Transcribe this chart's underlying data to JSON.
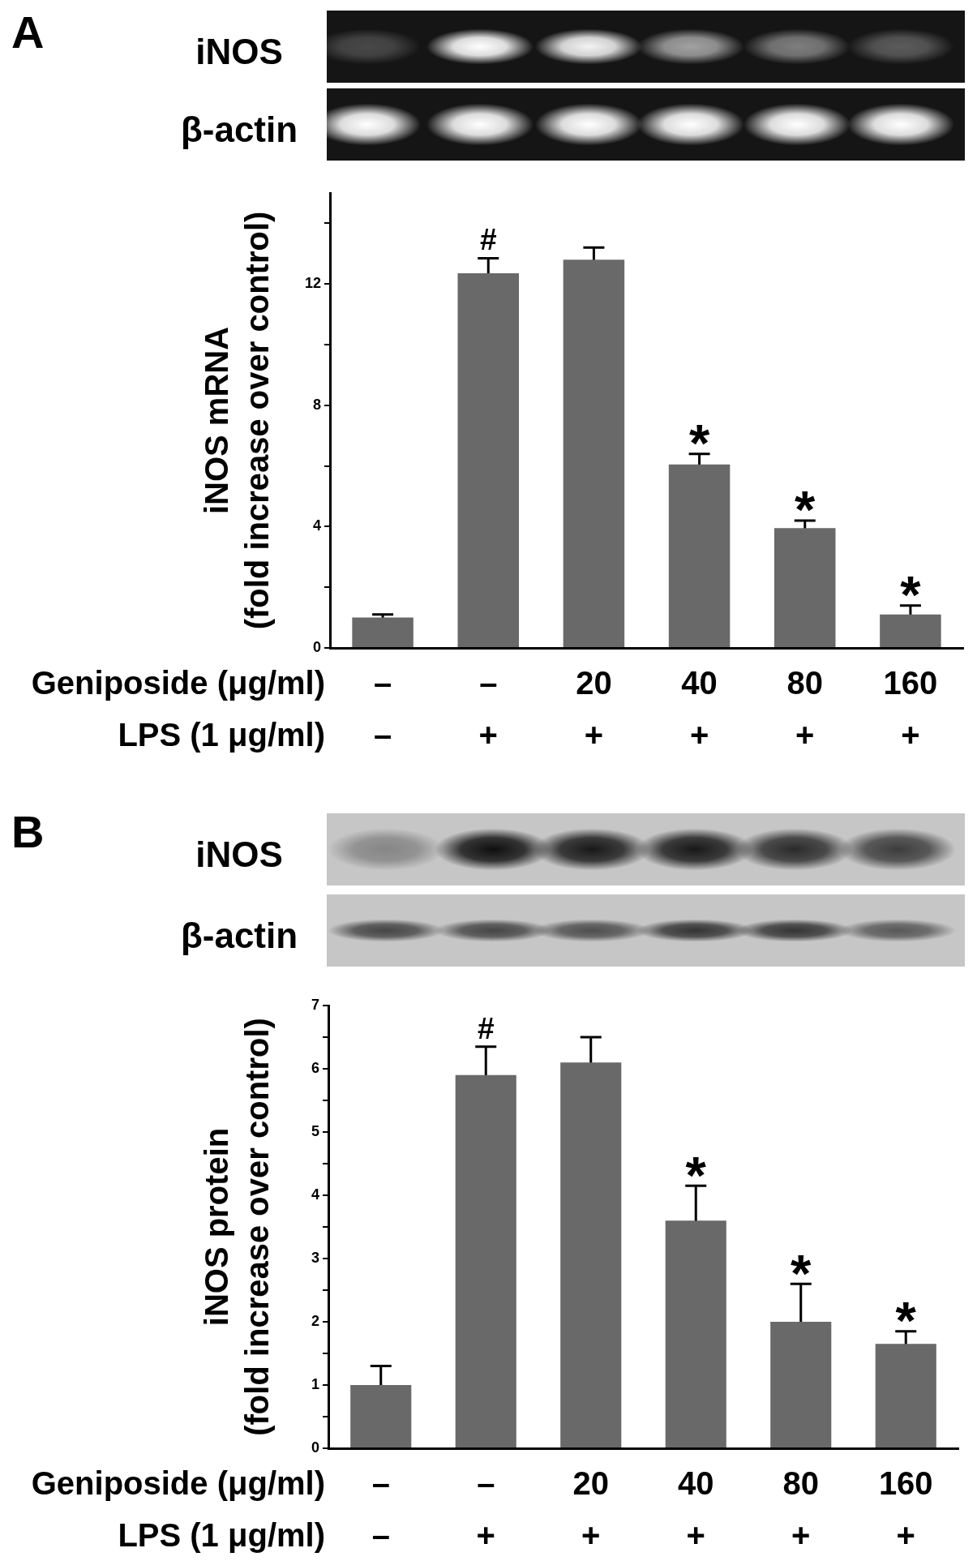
{
  "chart_data": [
    {
      "type": "bar",
      "title": "A",
      "xlabel": "Geniposide (μg/ml)\nLPS (1 μg/ml)",
      "ylabel": "iNOS mRNA\n(fold increase over control)",
      "categories": [
        "–\n–",
        "–\n+",
        "20\n+",
        "40\n+",
        "80\n+",
        "160\n+"
      ],
      "values": [
        1.0,
        12.35,
        12.8,
        6.05,
        3.95,
        1.1
      ],
      "errors": [
        0.1,
        0.5,
        0.4,
        0.35,
        0.25,
        0.3
      ],
      "color": "#696969",
      "value_labels": [
        null,
        "#",
        null,
        "*",
        "*",
        "*"
      ],
      "ylim": [
        0,
        15
      ],
      "yticks": [
        0,
        {
          "value": 2,
          "label": null
        },
        4,
        {
          "value": 6,
          "label": null
        },
        8,
        {
          "value": 10,
          "label": null
        },
        12,
        {
          "value": 14,
          "label": null
        }
      ],
      "annotations": [
        "iNOS",
        "β-actin"
      ]
    },
    {
      "type": "bar",
      "title": "B",
      "xlabel": "Geniposide (μg/ml)\nLPS (1 μg/ml)",
      "ylabel": "iNOS protein\n(fold increase over control)",
      "categories": [
        "–\n–",
        "–\n+",
        "20\n+",
        "40\n+",
        "80\n+",
        "160\n+"
      ],
      "values": [
        1.0,
        5.9,
        6.1,
        3.6,
        2.0,
        1.65
      ],
      "errors": [
        0.3,
        0.45,
        0.4,
        0.55,
        0.6,
        0.2
      ],
      "color": "#696969",
      "value_labels": [
        null,
        "#",
        null,
        "*",
        "*",
        "*"
      ],
      "ylim": [
        0,
        7
      ],
      "yticks": [
        0,
        {
          "value": 0.5,
          "label": null
        },
        1,
        {
          "value": 1.5,
          "label": null
        },
        2,
        {
          "value": 2.5,
          "label": null
        },
        3,
        {
          "value": 3.5,
          "label": null
        },
        4,
        {
          "value": 4.5,
          "label": null
        },
        5,
        {
          "value": 5.5,
          "label": null
        },
        6,
        {
          "value": 6.5,
          "label": null
        },
        7
      ],
      "annotations": [
        "iNOS",
        "β-actin"
      ]
    }
  ]
}
